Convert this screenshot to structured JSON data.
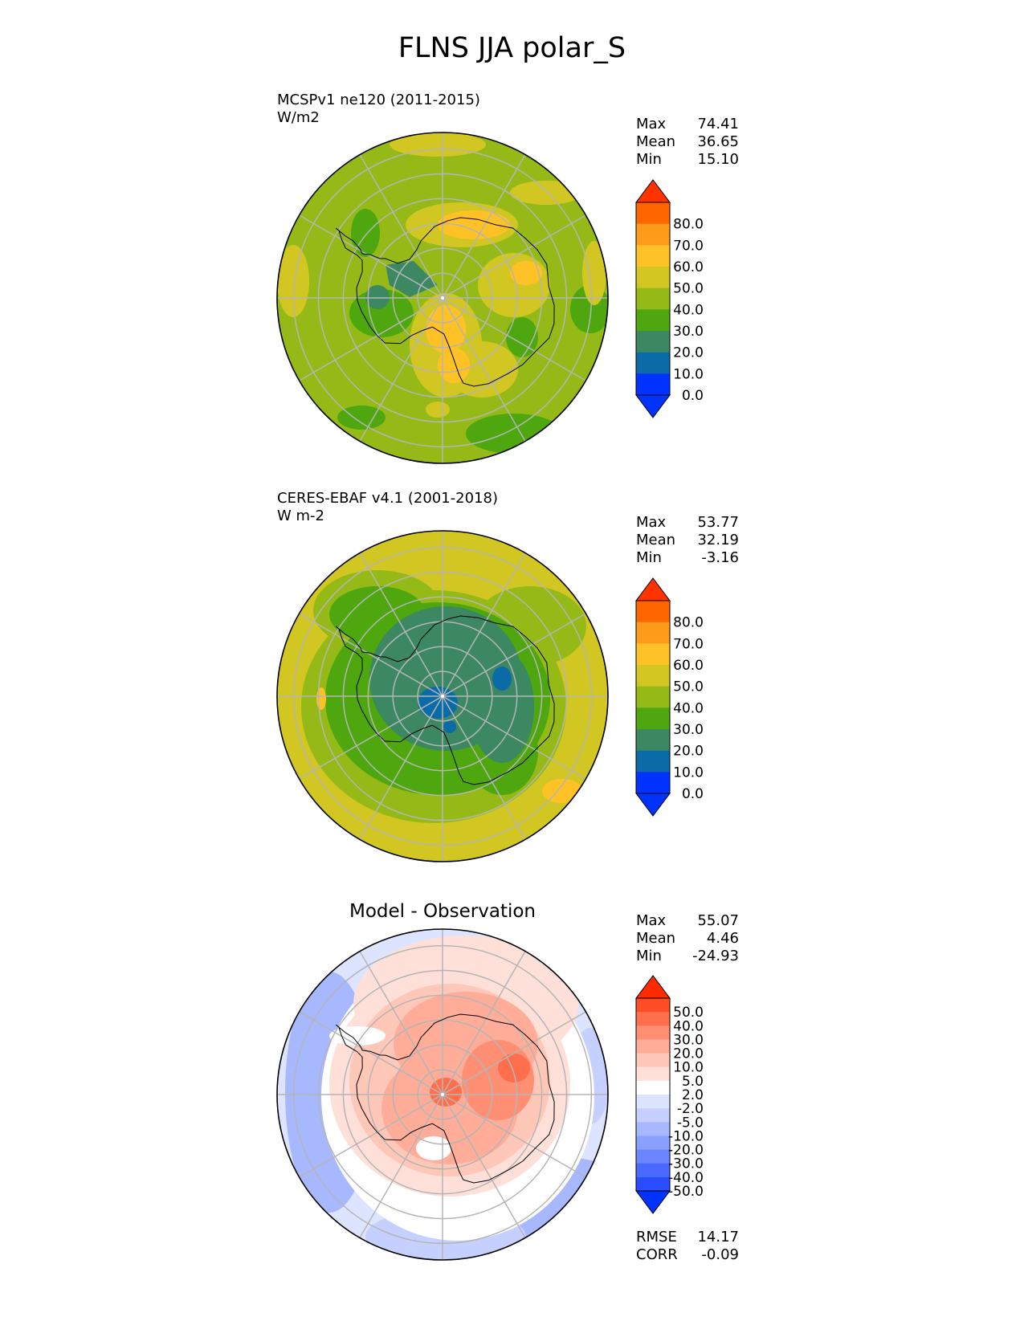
{
  "figure_title": "FLNS JJA polar_S",
  "panels": [
    {
      "id": "test",
      "title_line1": "MCSPv1 ne120 (2011-2015)",
      "title_line2": "W/m2",
      "stats": [
        {
          "label": "Max",
          "value": "74.41"
        },
        {
          "label": "Mean",
          "value": "36.65"
        },
        {
          "label": "Min",
          "value": "15.10"
        }
      ],
      "colorbar": {
        "labels": [
          "80.0",
          "70.0",
          "60.0",
          "50.0",
          "40.0",
          "30.0",
          "20.0",
          "10.0",
          "0.0"
        ],
        "colors": [
          "#ff3300",
          "#ff6600",
          "#ff9a1a",
          "#ffc226",
          "#d2c622",
          "#95ba18",
          "#4ea70e",
          "#3b8862",
          "#0b6ba6",
          "#0033ff",
          "#0033ff"
        ]
      },
      "map_background": "#95ba18"
    },
    {
      "id": "reference",
      "title_line1": "CERES-EBAF v4.1 (2001-2018)",
      "title_line2": "W m-2",
      "stats": [
        {
          "label": "Max",
          "value": "53.77"
        },
        {
          "label": "Mean",
          "value": "32.19"
        },
        {
          "label": "Min",
          "value": "-3.16"
        }
      ],
      "colorbar": {
        "labels": [
          "80.0",
          "70.0",
          "60.0",
          "50.0",
          "40.0",
          "30.0",
          "20.0",
          "10.0",
          "0.0"
        ],
        "colors": [
          "#ff3300",
          "#ff6600",
          "#ff9a1a",
          "#ffc226",
          "#d2c622",
          "#95ba18",
          "#4ea70e",
          "#3b8862",
          "#0b6ba6",
          "#0033ff",
          "#0033ff"
        ]
      },
      "map_background": "#d2c622"
    },
    {
      "id": "difference",
      "subtitle": "Model - Observation",
      "stats": [
        {
          "label": "Max",
          "value": "55.07"
        },
        {
          "label": "Mean",
          "value": "4.46"
        },
        {
          "label": "Min",
          "value": "-24.93"
        }
      ],
      "colorbar": {
        "labels": [
          "50.0",
          "40.0",
          "30.0",
          "20.0",
          "10.0",
          "5.0",
          "2.0",
          "-2.0",
          "-5.0",
          "-10.0",
          "-20.0",
          "-30.0",
          "-40.0",
          "-50.0"
        ],
        "colors": [
          "#ff2a00",
          "#ff4d26",
          "#ff6f4d",
          "#ff8f73",
          "#ffad99",
          "#ffc7b8",
          "#ffe0d8",
          "#ffffff",
          "#dde4ff",
          "#c5d0ff",
          "#a8b8ff",
          "#8aa0ff",
          "#6b86ff",
          "#4a6aff",
          "#2a4dff",
          "#0033ff"
        ]
      },
      "metrics": [
        {
          "label": "RMSE",
          "value": "14.17"
        },
        {
          "label": "CORR",
          "value": "-0.09"
        }
      ],
      "map_background": "#dde4ff"
    }
  ]
}
